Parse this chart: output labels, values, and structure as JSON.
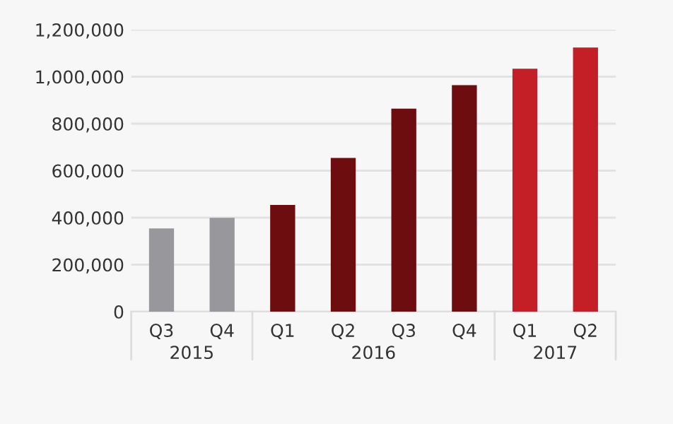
{
  "chart_data": {
    "type": "bar",
    "categories": [
      "Q3",
      "Q4",
      "Q1",
      "Q2",
      "Q3",
      "Q4",
      "Q1",
      "Q2"
    ],
    "values": [
      350000,
      395000,
      450000,
      650000,
      860000,
      960000,
      1030000,
      1120000
    ],
    "colors": [
      "#98989c",
      "#98989c",
      "#6e0d10",
      "#6e0d10",
      "#6e0d10",
      "#6e0d10",
      "#c41e26",
      "#c41e26"
    ],
    "annotations": [
      "2015",
      "2016",
      "2017"
    ],
    "ylim": [
      0,
      1200000
    ],
    "yticks": [
      {
        "value": 0,
        "label": "0"
      },
      {
        "value": 200000,
        "label": "200,000"
      },
      {
        "value": 400000,
        "label": "400,000"
      },
      {
        "value": 600000,
        "label": "600,000"
      },
      {
        "value": 800000,
        "label": "800,000"
      },
      {
        "value": 1000000,
        "label": "1,000,000"
      },
      {
        "value": 1200000,
        "label": "1,200,000"
      }
    ],
    "grid": "y"
  }
}
